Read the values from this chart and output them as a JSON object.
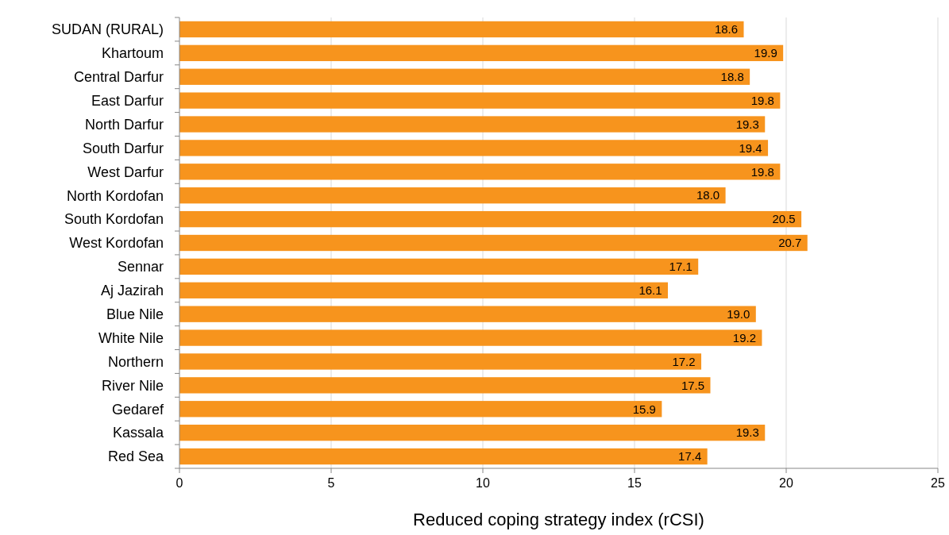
{
  "chart_data": {
    "type": "bar",
    "orientation": "horizontal",
    "xlabel": "Reduced coping strategy index (rCSI)",
    "categories": [
      "SUDAN (RURAL)",
      "Khartoum",
      "Central Darfur",
      "East Darfur",
      "North Darfur",
      "South Darfur",
      "West Darfur",
      "North Kordofan",
      "South Kordofan",
      "West Kordofan",
      "Sennar",
      "Aj Jazirah",
      "Blue Nile",
      "White Nile",
      "Northern",
      "River Nile",
      "Gedaref",
      "Kassala",
      "Red Sea"
    ],
    "values": [
      18.6,
      19.9,
      18.8,
      19.8,
      19.3,
      19.4,
      19.8,
      18.0,
      20.5,
      20.7,
      17.1,
      16.1,
      19.0,
      19.2,
      17.2,
      17.5,
      15.9,
      19.3,
      17.4
    ],
    "color": "#f7941d",
    "xlim": [
      0,
      25
    ],
    "xticks": [
      0,
      5,
      10,
      15,
      20,
      25
    ],
    "grid": "x",
    "value_labels": [
      "18.6",
      "19.9",
      "18.8",
      "19.8",
      "19.3",
      "19.4",
      "19.8",
      "18.0",
      "20.5",
      "20.7",
      "17.1",
      "16.1",
      "19.0",
      "19.2",
      "17.2",
      "17.5",
      "15.9",
      "19.3",
      "17.4"
    ]
  }
}
